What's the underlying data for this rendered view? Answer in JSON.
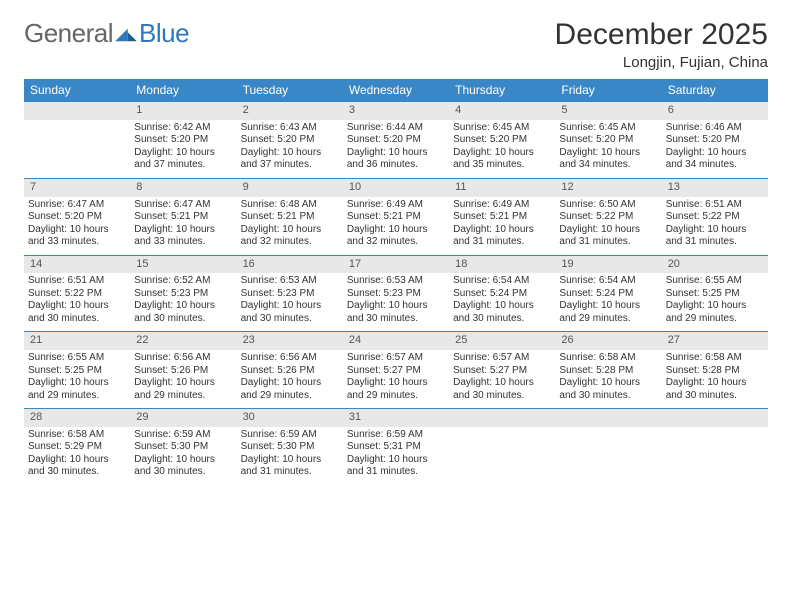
{
  "brand": {
    "name1": "General",
    "name2": "Blue"
  },
  "title": "December 2025",
  "location": "Longjin, Fujian, China",
  "colors": {
    "header_bg": "#3a87c8",
    "daynum_bg": "#e8e8e8",
    "rule": "#3a87c8",
    "text": "#333333",
    "logo_gray": "#666666",
    "logo_blue": "#2f78bb"
  },
  "weekdays": [
    "Sunday",
    "Monday",
    "Tuesday",
    "Wednesday",
    "Thursday",
    "Friday",
    "Saturday"
  ],
  "weeks": [
    [
      null,
      {
        "n": "1",
        "sr": "6:42 AM",
        "ss": "5:20 PM",
        "dl": "10 hours and 37 minutes."
      },
      {
        "n": "2",
        "sr": "6:43 AM",
        "ss": "5:20 PM",
        "dl": "10 hours and 37 minutes."
      },
      {
        "n": "3",
        "sr": "6:44 AM",
        "ss": "5:20 PM",
        "dl": "10 hours and 36 minutes."
      },
      {
        "n": "4",
        "sr": "6:45 AM",
        "ss": "5:20 PM",
        "dl": "10 hours and 35 minutes."
      },
      {
        "n": "5",
        "sr": "6:45 AM",
        "ss": "5:20 PM",
        "dl": "10 hours and 34 minutes."
      },
      {
        "n": "6",
        "sr": "6:46 AM",
        "ss": "5:20 PM",
        "dl": "10 hours and 34 minutes."
      }
    ],
    [
      {
        "n": "7",
        "sr": "6:47 AM",
        "ss": "5:20 PM",
        "dl": "10 hours and 33 minutes."
      },
      {
        "n": "8",
        "sr": "6:47 AM",
        "ss": "5:21 PM",
        "dl": "10 hours and 33 minutes."
      },
      {
        "n": "9",
        "sr": "6:48 AM",
        "ss": "5:21 PM",
        "dl": "10 hours and 32 minutes."
      },
      {
        "n": "10",
        "sr": "6:49 AM",
        "ss": "5:21 PM",
        "dl": "10 hours and 32 minutes."
      },
      {
        "n": "11",
        "sr": "6:49 AM",
        "ss": "5:21 PM",
        "dl": "10 hours and 31 minutes."
      },
      {
        "n": "12",
        "sr": "6:50 AM",
        "ss": "5:22 PM",
        "dl": "10 hours and 31 minutes."
      },
      {
        "n": "13",
        "sr": "6:51 AM",
        "ss": "5:22 PM",
        "dl": "10 hours and 31 minutes."
      }
    ],
    [
      {
        "n": "14",
        "sr": "6:51 AM",
        "ss": "5:22 PM",
        "dl": "10 hours and 30 minutes."
      },
      {
        "n": "15",
        "sr": "6:52 AM",
        "ss": "5:23 PM",
        "dl": "10 hours and 30 minutes."
      },
      {
        "n": "16",
        "sr": "6:53 AM",
        "ss": "5:23 PM",
        "dl": "10 hours and 30 minutes."
      },
      {
        "n": "17",
        "sr": "6:53 AM",
        "ss": "5:23 PM",
        "dl": "10 hours and 30 minutes."
      },
      {
        "n": "18",
        "sr": "6:54 AM",
        "ss": "5:24 PM",
        "dl": "10 hours and 30 minutes."
      },
      {
        "n": "19",
        "sr": "6:54 AM",
        "ss": "5:24 PM",
        "dl": "10 hours and 29 minutes."
      },
      {
        "n": "20",
        "sr": "6:55 AM",
        "ss": "5:25 PM",
        "dl": "10 hours and 29 minutes."
      }
    ],
    [
      {
        "n": "21",
        "sr": "6:55 AM",
        "ss": "5:25 PM",
        "dl": "10 hours and 29 minutes."
      },
      {
        "n": "22",
        "sr": "6:56 AM",
        "ss": "5:26 PM",
        "dl": "10 hours and 29 minutes."
      },
      {
        "n": "23",
        "sr": "6:56 AM",
        "ss": "5:26 PM",
        "dl": "10 hours and 29 minutes."
      },
      {
        "n": "24",
        "sr": "6:57 AM",
        "ss": "5:27 PM",
        "dl": "10 hours and 29 minutes."
      },
      {
        "n": "25",
        "sr": "6:57 AM",
        "ss": "5:27 PM",
        "dl": "10 hours and 30 minutes."
      },
      {
        "n": "26",
        "sr": "6:58 AM",
        "ss": "5:28 PM",
        "dl": "10 hours and 30 minutes."
      },
      {
        "n": "27",
        "sr": "6:58 AM",
        "ss": "5:28 PM",
        "dl": "10 hours and 30 minutes."
      }
    ],
    [
      {
        "n": "28",
        "sr": "6:58 AM",
        "ss": "5:29 PM",
        "dl": "10 hours and 30 minutes."
      },
      {
        "n": "29",
        "sr": "6:59 AM",
        "ss": "5:30 PM",
        "dl": "10 hours and 30 minutes."
      },
      {
        "n": "30",
        "sr": "6:59 AM",
        "ss": "5:30 PM",
        "dl": "10 hours and 31 minutes."
      },
      {
        "n": "31",
        "sr": "6:59 AM",
        "ss": "5:31 PM",
        "dl": "10 hours and 31 minutes."
      },
      null,
      null,
      null
    ]
  ],
  "labels": {
    "sunrise": "Sunrise:",
    "sunset": "Sunset:",
    "daylight": "Daylight:"
  }
}
